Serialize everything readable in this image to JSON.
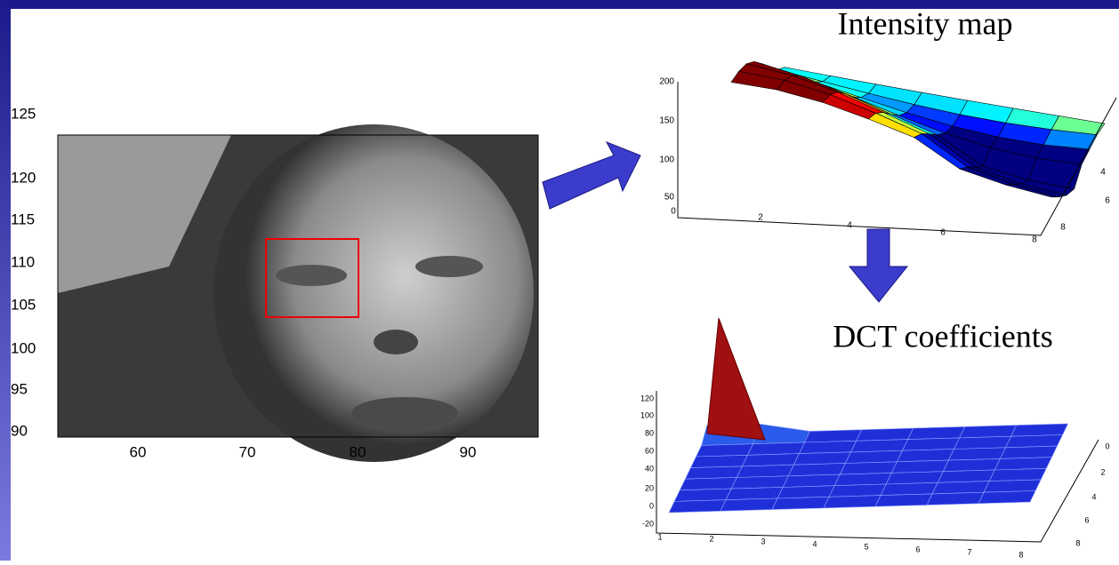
{
  "face_image": {
    "yticks": [
      "125",
      "120",
      "115",
      "110",
      "105",
      "100",
      "95",
      "90"
    ],
    "xticks": [
      "60",
      "70",
      "80",
      "90"
    ]
  },
  "intensity_map": {
    "title": "Intensity map",
    "zticks": [
      "200",
      "150",
      "100",
      "50"
    ],
    "xticks": [
      "0",
      "2",
      "4",
      "6",
      "8"
    ],
    "yticks": [
      "4",
      "6",
      "8"
    ]
  },
  "dct_coefficients": {
    "title": "DCT coefficients",
    "zticks": [
      "120",
      "100",
      "80",
      "60",
      "40",
      "20",
      "0",
      "-20"
    ],
    "xticks": [
      "1",
      "2",
      "3",
      "4",
      "5",
      "6",
      "7",
      "8"
    ],
    "yticks": [
      "0",
      "2",
      "4",
      "6",
      "8"
    ]
  }
}
